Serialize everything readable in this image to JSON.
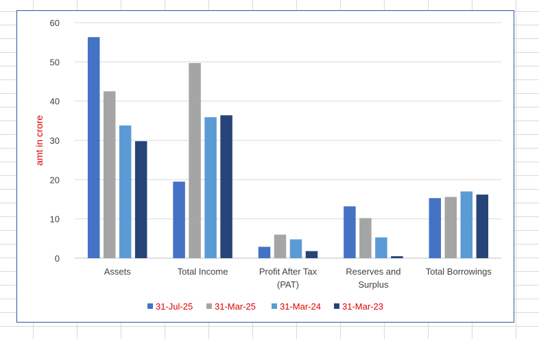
{
  "chart_data": {
    "type": "bar",
    "title": "",
    "xlabel": "",
    "ylabel": "amt in crore",
    "ylim": [
      0,
      60
    ],
    "yticks": [
      0,
      10,
      20,
      30,
      40,
      50,
      60
    ],
    "grid": true,
    "legend": "bottom",
    "categories": [
      [
        "Assets"
      ],
      [
        "Total Income"
      ],
      [
        "Profit After Tax",
        "(PAT)"
      ],
      [
        "Reserves and",
        "Surplus"
      ],
      [
        "Total Borrowings"
      ]
    ],
    "series": [
      {
        "name": "31-Jul-25",
        "color": "#4472c4",
        "values": [
          56.3,
          19.5,
          2.9,
          13.2,
          15.3
        ]
      },
      {
        "name": "31-Mar-25",
        "color": "#a5a5a5",
        "values": [
          42.5,
          49.7,
          6.0,
          10.2,
          15.6
        ]
      },
      {
        "name": "31-Mar-24",
        "color": "#5b9bd5",
        "values": [
          33.8,
          35.9,
          4.8,
          5.3,
          17.0
        ]
      },
      {
        "name": "31-Mar-23",
        "color": "#264478",
        "values": [
          29.8,
          36.4,
          1.8,
          0.5,
          16.2
        ]
      }
    ]
  }
}
